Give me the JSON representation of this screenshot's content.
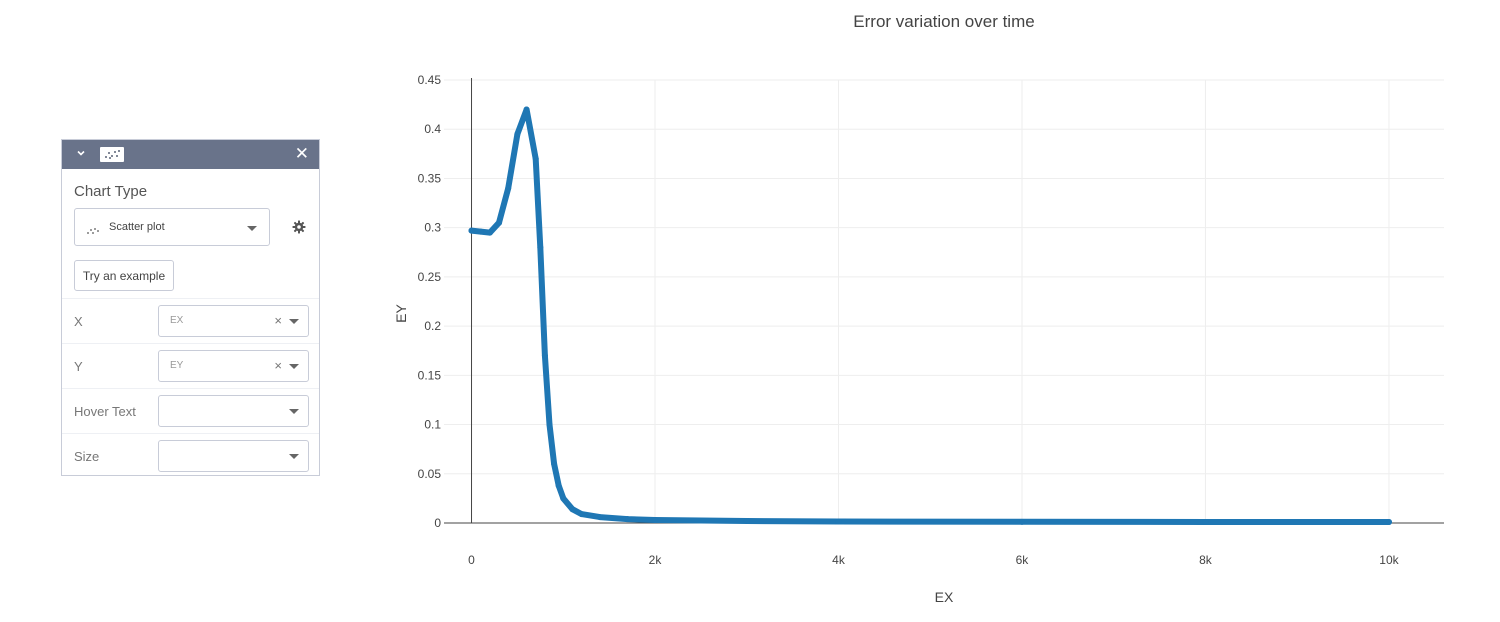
{
  "panel": {
    "section_title": "Chart Type",
    "chart_type_label": "Scatter plot",
    "example_button": "Try an example",
    "rows": [
      {
        "label": "X",
        "value": "EX"
      },
      {
        "label": "Y",
        "value": "EY"
      },
      {
        "label": "Hover Text",
        "value": ""
      },
      {
        "label": "Size",
        "value": ""
      }
    ]
  },
  "chart_data": {
    "type": "scatter",
    "title": "Error variation over time",
    "xlabel": "EX",
    "ylabel": "EY",
    "xlim": [
      -300,
      10600
    ],
    "ylim": [
      0,
      0.45
    ],
    "xticks": [
      0,
      2000,
      4000,
      6000,
      8000,
      10000
    ],
    "xtick_labels": [
      "0",
      "2k",
      "4k",
      "6k",
      "8k",
      "10k"
    ],
    "yticks": [
      0,
      0.05,
      0.1,
      0.15,
      0.2,
      0.25,
      0.3,
      0.35,
      0.4,
      0.45
    ],
    "ytick_labels": [
      "0",
      "0.05",
      "0.1",
      "0.15",
      "0.2",
      "0.25",
      "0.3",
      "0.35",
      "0.4",
      "0.45"
    ],
    "grid": true,
    "series_color": "#1f77b4",
    "x": [
      0,
      100,
      200,
      300,
      400,
      500,
      600,
      700,
      750,
      800,
      850,
      900,
      950,
      1000,
      1100,
      1200,
      1400,
      1700,
      2000,
      3000,
      4000,
      6000,
      8000,
      10000
    ],
    "y": [
      0.297,
      0.296,
      0.295,
      0.305,
      0.34,
      0.395,
      0.42,
      0.37,
      0.28,
      0.17,
      0.1,
      0.06,
      0.038,
      0.025,
      0.014,
      0.009,
      0.006,
      0.004,
      0.003,
      0.002,
      0.0015,
      0.0012,
      0.001,
      0.001
    ]
  }
}
